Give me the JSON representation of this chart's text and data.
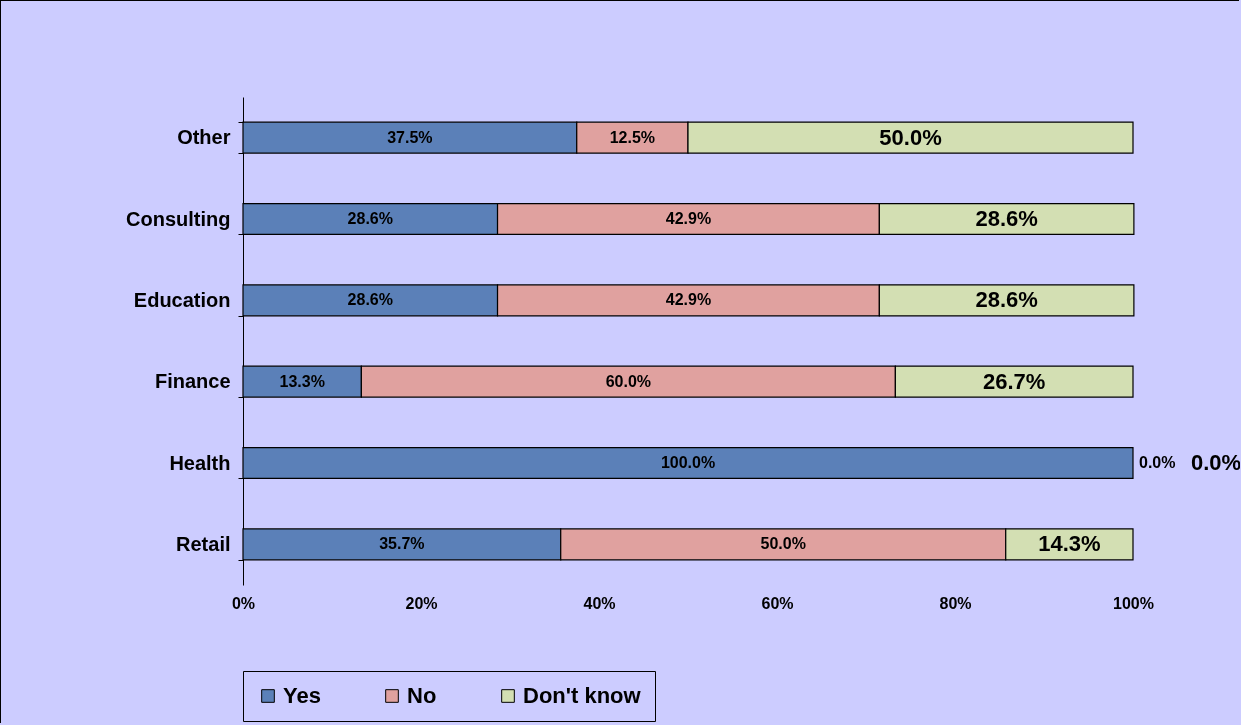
{
  "chart_data": {
    "type": "bar",
    "orientation": "horizontal",
    "stacked": true,
    "categories": [
      "Other",
      "Consulting",
      "Education",
      "Finance",
      "Health",
      "Retail"
    ],
    "series": [
      {
        "name": "Yes",
        "color": "#5b80b8",
        "values": [
          37.5,
          28.6,
          28.6,
          13.3,
          100.0,
          35.7
        ],
        "value_labels": [
          "37.5%",
          "28.6%",
          "28.6%",
          "13.3%",
          "100.0%",
          "35.7%"
        ]
      },
      {
        "name": "No",
        "color": "#e0a19f",
        "values": [
          12.5,
          42.9,
          42.9,
          60.0,
          0.0,
          50.0
        ],
        "value_labels": [
          "12.5%",
          "42.9%",
          "42.9%",
          "60.0%",
          "0.0%",
          "50.0%"
        ]
      },
      {
        "name": "Don't know",
        "color": "#d3dfb3",
        "values": [
          50.0,
          28.6,
          28.6,
          26.7,
          0.0,
          14.3
        ],
        "value_labels": [
          "50.0%",
          "28.6%",
          "28.6%",
          "26.7%",
          "0.0%",
          "14.3%"
        ]
      }
    ],
    "xlim": [
      0,
      100
    ],
    "xticks": [
      {
        "value": 0,
        "label": "0%"
      },
      {
        "value": 20,
        "label": "20%"
      },
      {
        "value": 40,
        "label": "40%"
      },
      {
        "value": 60,
        "label": "60%"
      },
      {
        "value": 80,
        "label": "80%"
      },
      {
        "value": 100,
        "label": "100%"
      }
    ],
    "grid": false,
    "legend": "bottom"
  }
}
